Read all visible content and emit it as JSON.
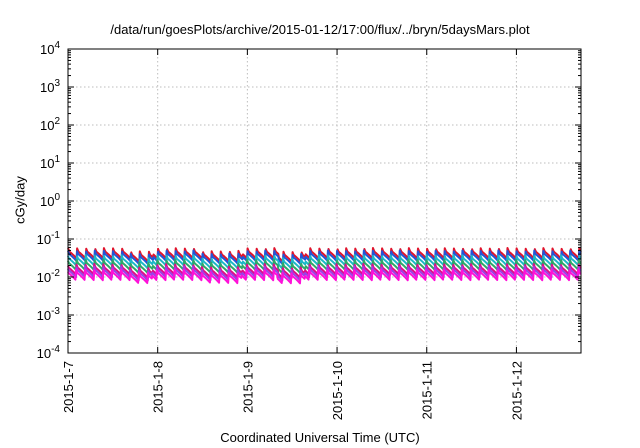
{
  "chart_data": {
    "type": "line",
    "title": "/data/run/goesPlots/archive/2015-01-12/17:00/flux/../bryn/5daysMars.plot",
    "xlabel": "Coordinated Universal Time (UTC)",
    "ylabel": "cGy/day",
    "y_scale": "log",
    "ylim": [
      "1e-4",
      "1e4"
    ],
    "x_range_days": [
      0,
      5.72
    ],
    "y_ticks": [
      {
        "base": "10",
        "exp": "-4"
      },
      {
        "base": "10",
        "exp": "-3"
      },
      {
        "base": "10",
        "exp": "-2"
      },
      {
        "base": "10",
        "exp": "-1"
      },
      {
        "base": "10",
        "exp": "0"
      },
      {
        "base": "10",
        "exp": "1"
      },
      {
        "base": "10",
        "exp": "2"
      },
      {
        "base": "10",
        "exp": "3"
      },
      {
        "base": "10",
        "exp": "4"
      }
    ],
    "x_ticks": [
      "2015-1-7",
      "2015-1-8",
      "2015-1-9",
      "2015-1-10",
      "2015-1-11",
      "2015-1-12"
    ],
    "grid": true,
    "series": [
      {
        "color": "#e0142c",
        "level": 0.058
      },
      {
        "color": "#2255d8",
        "level": 0.05
      },
      {
        "color": "#1cb8c8",
        "level": 0.038
      },
      {
        "color": "#2da868",
        "level": 0.029
      },
      {
        "color": "#e00c86",
        "level": 0.022
      },
      {
        "color": "#9a40e8",
        "level": 0.019
      },
      {
        "color": "#ff10d8",
        "level": 0.016
      }
    ]
  }
}
